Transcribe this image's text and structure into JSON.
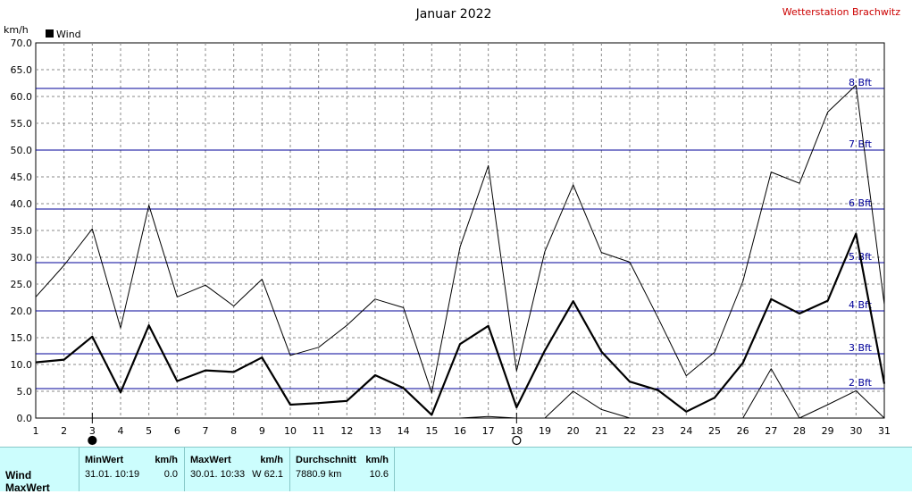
{
  "title": "Januar 2022",
  "station": "Wetterstation Brachwitz",
  "legend": {
    "label": "Wind",
    "color": "#000000"
  },
  "chart_data": {
    "type": "line",
    "title": "Januar 2022",
    "ylabel": "km/h",
    "xlabel": "",
    "ylim": [
      0,
      70
    ],
    "y_ticks": [
      "0.0",
      "5.0",
      "10.0",
      "15.0",
      "20.0",
      "25.0",
      "30.0",
      "35.0",
      "40.0",
      "45.0",
      "50.0",
      "55.0",
      "60.0",
      "65.0",
      "70.0"
    ],
    "x": [
      1,
      2,
      3,
      4,
      5,
      6,
      7,
      8,
      9,
      10,
      11,
      12,
      13,
      14,
      15,
      16,
      17,
      18,
      19,
      20,
      21,
      22,
      23,
      24,
      25,
      26,
      27,
      28,
      29,
      30,
      31
    ],
    "x_ticks": [
      "1",
      "2",
      "3",
      "4",
      "5",
      "6",
      "7",
      "8",
      "9",
      "10",
      "11",
      "12",
      "13",
      "14",
      "15",
      "16",
      "17",
      "18",
      "19",
      "20",
      "21",
      "22",
      "23",
      "24",
      "25",
      "26",
      "27",
      "28",
      "29",
      "30",
      "31"
    ],
    "grid": true,
    "series": [
      {
        "name": "Wind",
        "style": "bold",
        "values": [
          10.4,
          10.9,
          15.2,
          4.8,
          17.3,
          6.9,
          8.9,
          8.6,
          11.3,
          2.5,
          2.8,
          3.2,
          8.0,
          5.6,
          0.6,
          13.8,
          17.2,
          2.0,
          12.6,
          21.8,
          12.4,
          6.8,
          5.2,
          1.2,
          3.8,
          10.3,
          22.2,
          19.5,
          21.9,
          34.4,
          6.4
        ]
      },
      {
        "name": "",
        "style": "thin-max",
        "values": [
          22.6,
          28.5,
          35.3,
          16.8,
          39.7,
          22.6,
          24.8,
          20.9,
          25.9,
          11.7,
          13.2,
          17.3,
          22.2,
          20.6,
          4.7,
          31.9,
          47.1,
          8.8,
          31.1,
          43.5,
          30.9,
          29.1,
          18.7,
          7.9,
          12.3,
          25.5,
          45.9,
          43.8,
          57.1,
          62.1,
          21.2
        ]
      },
      {
        "name": "",
        "style": "thin-min",
        "values": [
          0,
          0,
          0,
          0,
          0,
          0,
          0,
          0,
          0,
          0,
          0,
          0,
          0,
          0,
          0,
          0,
          0.3,
          0,
          0,
          5.0,
          1.6,
          0,
          0,
          0,
          0,
          0,
          9.2,
          0,
          2.5,
          5.1,
          0
        ]
      }
    ],
    "reference_lines": [
      {
        "value": 5.5,
        "label": "2 Bft"
      },
      {
        "value": 12.0,
        "label": "3 Bft"
      },
      {
        "value": 20.0,
        "label": "4 Bft"
      },
      {
        "value": 29.0,
        "label": "5 Bft"
      },
      {
        "value": 39.0,
        "label": "6 Bft"
      },
      {
        "value": 50.0,
        "label": "7 Bft"
      },
      {
        "value": 61.5,
        "label": "8 Bft"
      }
    ],
    "day_markers": [
      {
        "day": 3,
        "type": "filled-circle"
      },
      {
        "day": 18,
        "type": "open-circle"
      }
    ]
  },
  "stats": {
    "row_labels": [
      "Wind",
      "MaxWert"
    ],
    "min": {
      "header": "MinWert",
      "unit": "km/h",
      "date": "31.01.  10:19",
      "value": "0.0"
    },
    "max": {
      "header": "MaxWert",
      "unit": "km/h",
      "date": "30.01.  10:33",
      "value": "W 62.1"
    },
    "avg": {
      "header": "Durchschnitt",
      "unit": "km/h",
      "distance": "7880.9 km",
      "value": "10.6"
    }
  },
  "colors": {
    "grid": "#888888",
    "reference": "#000099",
    "stats_bg": "#ccfdfd",
    "station": "#cc0000"
  }
}
